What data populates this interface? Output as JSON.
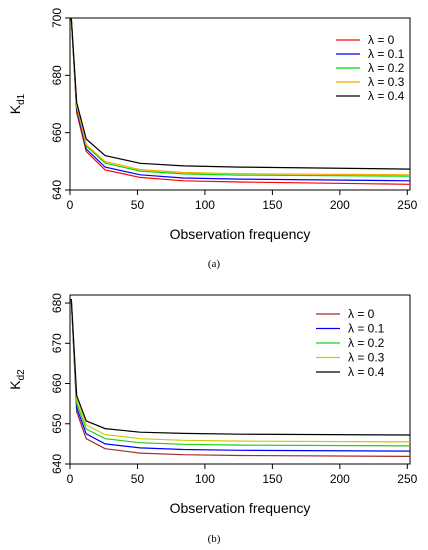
{
  "chart_data": [
    {
      "type": "line",
      "ylabel_main": "K",
      "ylabel_sub": "d1",
      "xlabel": "Observation frequency",
      "caption": "(a)",
      "xlim": [
        0,
        252
      ],
      "ylim": [
        640,
        700
      ],
      "x_ticks": [
        0,
        50,
        100,
        150,
        200,
        250
      ],
      "y_ticks": [
        640,
        660,
        680,
        700
      ],
      "legend_position": "top-right",
      "grid": false,
      "x": [
        1,
        5,
        12,
        26,
        52,
        84,
        126,
        252
      ],
      "series": [
        {
          "name": "λ = 0",
          "color": "#ff0000",
          "values": [
            700,
            667,
            653.5,
            647.0,
            644.4,
            643.2,
            642.8,
            642.0
          ]
        },
        {
          "name": "λ = 0.1",
          "color": "#0000ff",
          "values": [
            700,
            668,
            654.3,
            648.0,
            645.3,
            644.2,
            643.8,
            643.2
          ]
        },
        {
          "name": "λ = 0.2",
          "color": "#00dd00",
          "values": [
            700,
            669,
            655.3,
            649.4,
            646.6,
            645.6,
            645.2,
            644.8
          ]
        },
        {
          "name": "λ = 0.3",
          "color": "#ffa500",
          "values": [
            700,
            669.5,
            655.8,
            649.9,
            647.1,
            646.1,
            645.7,
            645.3
          ]
        },
        {
          "name": "λ = 0.4",
          "color": "#000000",
          "values": [
            700,
            670.5,
            657.8,
            652.0,
            649.3,
            648.4,
            648.0,
            647.3
          ]
        }
      ]
    },
    {
      "type": "line",
      "ylabel_main": "K",
      "ylabel_sub": "d2",
      "xlabel": "Observation frequency",
      "caption": "(b)",
      "xlim": [
        0,
        252
      ],
      "ylim": [
        640,
        682
      ],
      "x_ticks": [
        0,
        50,
        100,
        150,
        200,
        250
      ],
      "y_ticks": [
        640,
        650,
        660,
        670,
        680
      ],
      "legend_position": "top-right",
      "grid": false,
      "x": [
        1,
        5,
        12,
        26,
        52,
        84,
        126,
        252
      ],
      "series": [
        {
          "name": "λ = 0",
          "color": "#a52a2a",
          "values": [
            681,
            653,
            646.3,
            643.8,
            642.7,
            642.3,
            642.1,
            641.9
          ]
        },
        {
          "name": "λ = 0.1",
          "color": "#0000ff",
          "values": [
            681,
            654,
            647.5,
            645.0,
            644.0,
            643.6,
            643.4,
            643.2
          ]
        },
        {
          "name": "λ = 0.2",
          "color": "#22cc22",
          "values": [
            681,
            655,
            648.7,
            646.3,
            645.3,
            644.9,
            644.7,
            644.5
          ]
        },
        {
          "name": "λ = 0.3",
          "color": "#cccc00",
          "values": [
            681,
            656,
            649.7,
            647.3,
            646.3,
            645.9,
            645.7,
            645.5
          ]
        },
        {
          "name": "λ = 0.4",
          "color": "#000000",
          "values": [
            681,
            657,
            650.7,
            648.8,
            647.9,
            647.6,
            647.4,
            647.2
          ]
        }
      ]
    }
  ]
}
